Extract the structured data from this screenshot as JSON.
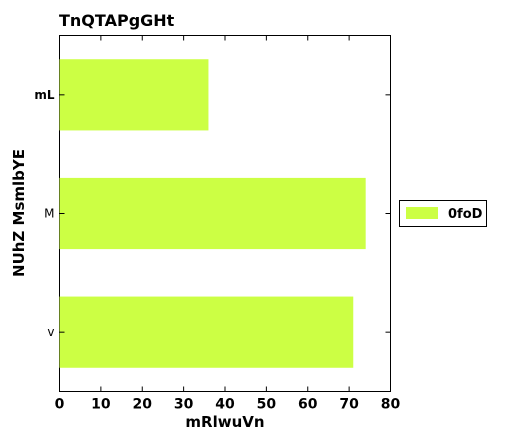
{
  "chart_data": {
    "type": "bar",
    "orientation": "horizontal",
    "title": "TnQTAPgGHt",
    "xlabel": "mRlwuVn",
    "ylabel": "NUhZ  MsmlbYE",
    "categories": [
      "v",
      "M",
      "mL"
    ],
    "series": [
      {
        "name": "0foD",
        "values": [
          71,
          74,
          36
        ],
        "color": "#ccff44"
      }
    ],
    "xlim": [
      0,
      80
    ],
    "xticks": [
      0,
      10,
      20,
      30,
      40,
      50,
      60,
      70,
      80
    ],
    "grid": false,
    "legend_position": "center-right"
  }
}
